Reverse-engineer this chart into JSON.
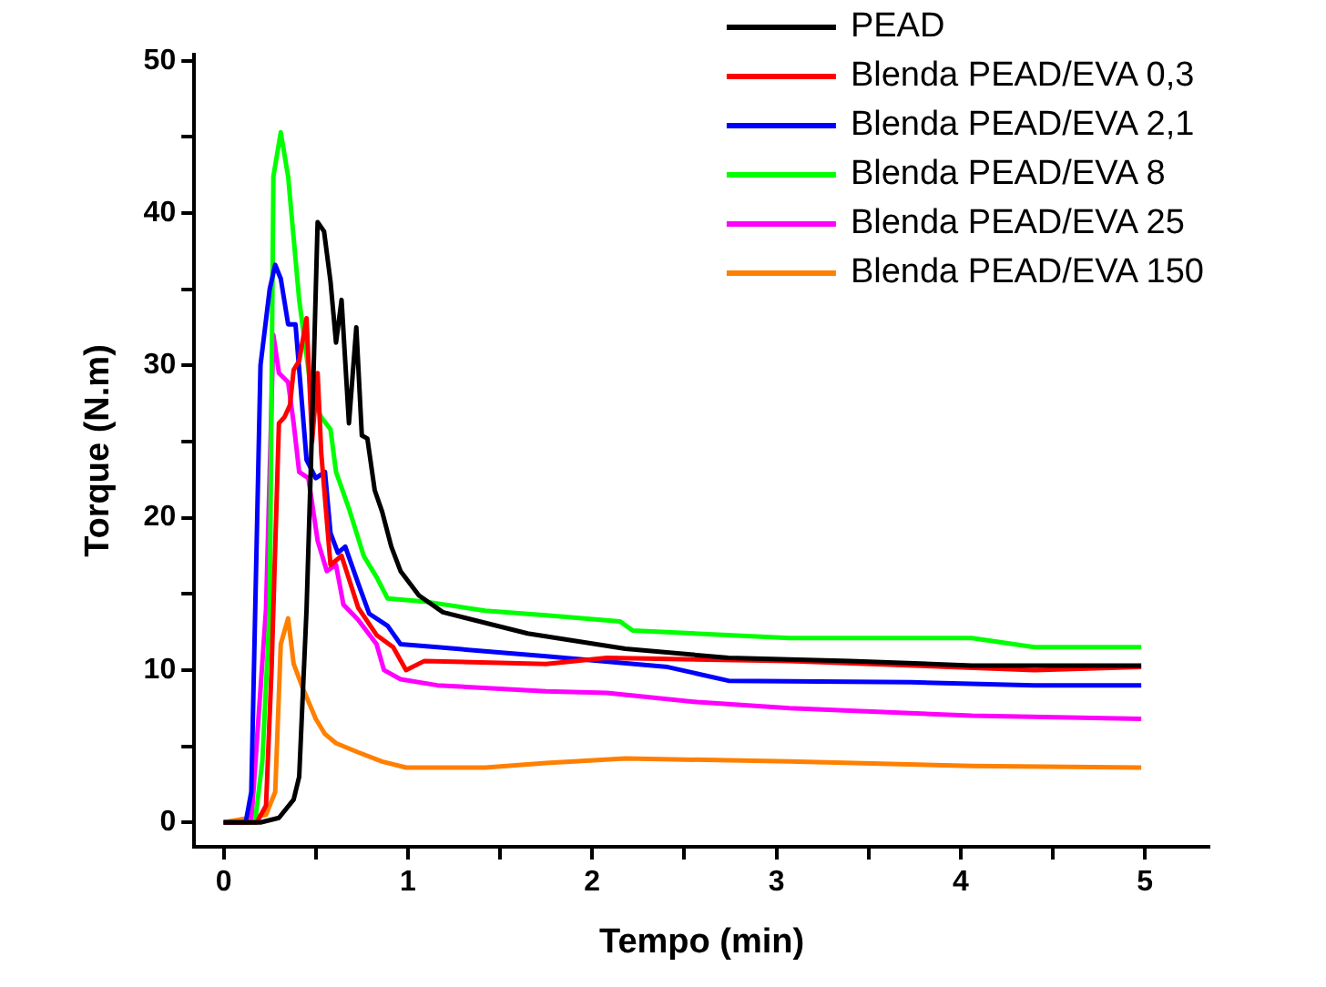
{
  "chart_data": {
    "type": "line",
    "xlabel": "Tempo (min)",
    "ylabel": "Torque (N.m)",
    "xlim": [
      -0.16,
      5.35
    ],
    "ylim": [
      -1.6,
      50.4
    ],
    "xticks": [
      0,
      {
        "value": 0.5,
        "label": null
      },
      1,
      {
        "value": 1.5,
        "label": null
      },
      2,
      {
        "value": 2.5,
        "label": null
      },
      3,
      {
        "value": 3.5,
        "label": null
      },
      4,
      {
        "value": 4.5,
        "label": null
      },
      5
    ],
    "yticks": [
      0,
      {
        "value": 5,
        "label": null
      },
      10,
      {
        "value": 15,
        "label": null
      },
      20,
      {
        "value": 25,
        "label": null
      },
      30,
      {
        "value": 35,
        "label": null
      },
      40,
      {
        "value": 45,
        "label": null
      },
      50
    ],
    "grid": false,
    "legend": "top right",
    "marker": "none",
    "line_style": "solid",
    "series": [
      {
        "name": "PEAD",
        "color": "#000000",
        "x": [
          0,
          0.2,
          0.3,
          0.38,
          0.41,
          0.45,
          0.48,
          0.51,
          0.545,
          0.58,
          0.61,
          0.64,
          0.68,
          0.72,
          0.75,
          0.78,
          0.82,
          0.86,
          0.91,
          0.96,
          1.06,
          1.19,
          1.65,
          2.18,
          2.74,
          3.4,
          4.06,
          4.98
        ],
        "values": [
          0,
          0,
          0.3,
          1.5,
          3,
          14,
          26,
          39.4,
          38.8,
          35.5,
          31.5,
          34.3,
          26.2,
          32.5,
          25.4,
          25.2,
          21.8,
          20.4,
          18.1,
          16.5,
          14.9,
          13.8,
          12.4,
          11.4,
          10.8,
          10.6,
          10.3,
          10.3
        ]
      },
      {
        "name": "Blenda PEAD/EVA 0,3",
        "color": "#ff0000",
        "x": [
          0,
          0.18,
          0.23,
          0.26,
          0.3,
          0.33,
          0.36,
          0.38,
          0.41,
          0.45,
          0.48,
          0.51,
          0.53,
          0.58,
          0.64,
          0.73,
          0.83,
          0.92,
          0.99,
          1.09,
          1.75,
          2.08,
          3.07,
          4.4,
          4.98
        ],
        "values": [
          0,
          0,
          1.1,
          10,
          26.2,
          26.6,
          27.4,
          29.7,
          30.3,
          33.1,
          25,
          29.5,
          24.2,
          16.9,
          17.5,
          14.1,
          12.3,
          11.5,
          10,
          10.6,
          10.4,
          10.8,
          10.6,
          10,
          10.2
        ]
      },
      {
        "name": "Blenda PEAD/EVA 2,1",
        "color": "#0000ff",
        "x": [
          0,
          0.12,
          0.15,
          0.2,
          0.25,
          0.28,
          0.31,
          0.35,
          0.39,
          0.45,
          0.5,
          0.55,
          0.58,
          0.62,
          0.66,
          0.73,
          0.79,
          0.89,
          0.96,
          1.16,
          1.75,
          2.41,
          2.74,
          3.73,
          4.4,
          4.98
        ],
        "values": [
          0,
          0,
          2,
          30,
          35,
          36.6,
          35.7,
          32.7,
          32.7,
          23.8,
          22.6,
          23,
          19,
          17.7,
          18.1,
          15.7,
          13.7,
          12.9,
          11.7,
          11.5,
          10.9,
          10.2,
          9.3,
          9.2,
          9,
          9
        ]
      },
      {
        "name": "Blenda PEAD/EVA 8",
        "color": "#00ff00",
        "x": [
          0,
          0.17,
          0.21,
          0.25,
          0.27,
          0.31,
          0.35,
          0.41,
          0.48,
          0.53,
          0.58,
          0.61,
          0.68,
          0.76,
          0.83,
          0.89,
          1.09,
          1.42,
          1.75,
          2.15,
          2.22,
          3.07,
          4.06,
          4.4,
          4.98
        ],
        "values": [
          0,
          0,
          4,
          14,
          42.4,
          45.3,
          42.4,
          34.3,
          27.9,
          26.6,
          25.8,
          23,
          20.6,
          17.5,
          16.1,
          14.7,
          14.5,
          13.9,
          13.6,
          13.2,
          12.6,
          12.1,
          12.1,
          11.5,
          11.5
        ]
      },
      {
        "name": "Blenda PEAD/EVA 25",
        "color": "#ff00ff",
        "x": [
          0,
          0.15,
          0.23,
          0.27,
          0.3,
          0.35,
          0.38,
          0.41,
          0.46,
          0.51,
          0.56,
          0.61,
          0.65,
          0.73,
          0.83,
          0.87,
          0.96,
          1.16,
          1.75,
          2.08,
          2.57,
          3.07,
          4.06,
          4.98
        ],
        "values": [
          0,
          0,
          14,
          32,
          29.5,
          28.9,
          26.2,
          23,
          22.6,
          18.5,
          16.5,
          16.9,
          14.3,
          13.3,
          11.7,
          10,
          9.4,
          9,
          8.6,
          8.5,
          7.9,
          7.5,
          7,
          6.8
        ]
      },
      {
        "name": "Blenda PEAD/EVA 150",
        "color": "#ff8000",
        "x": [
          0,
          0.23,
          0.28,
          0.31,
          0.35,
          0.38,
          0.43,
          0.5,
          0.55,
          0.61,
          0.73,
          0.86,
          0.99,
          1.42,
          1.75,
          2.18,
          3.07,
          4.06,
          4.98
        ],
        "values": [
          0,
          0.5,
          2,
          11.7,
          13.4,
          10.4,
          8.8,
          6.8,
          5.8,
          5.2,
          4.6,
          4,
          3.6,
          3.6,
          3.9,
          4.2,
          4,
          3.7,
          3.6
        ]
      }
    ]
  }
}
